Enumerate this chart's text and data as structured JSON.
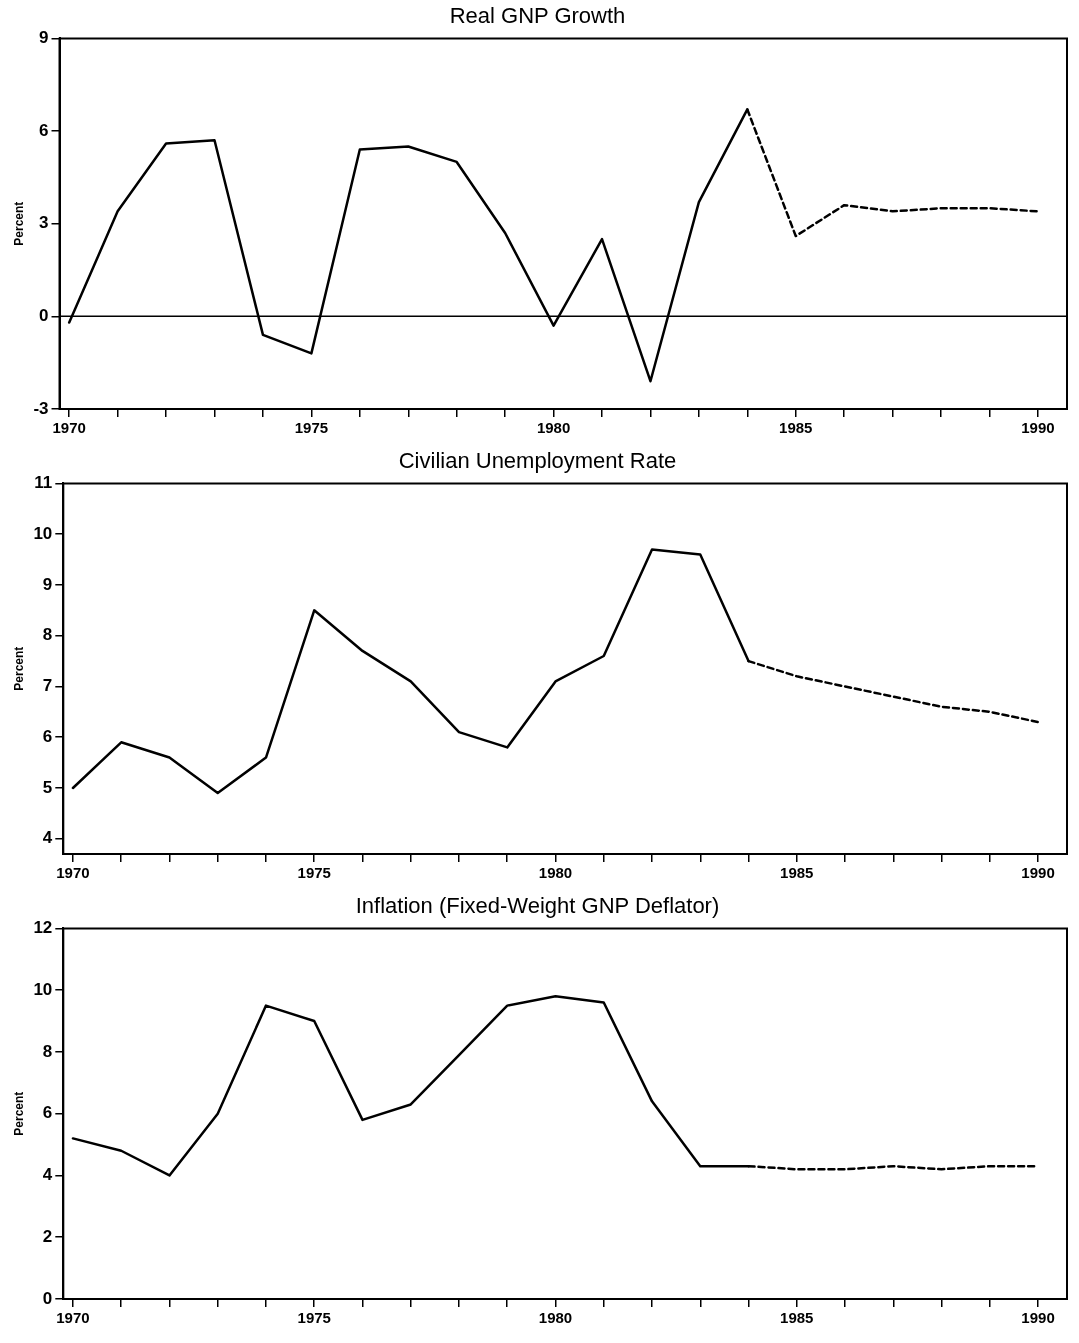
{
  "chart_data": [
    {
      "type": "line",
      "title": "Real GNP Growth",
      "ylabel": "Percent",
      "marker": "none",
      "xlim": [
        1969.8,
        1990.6
      ],
      "xticks": [
        1970,
        {
          "value": 1971,
          "label": null
        },
        {
          "value": 1972,
          "label": null
        },
        {
          "value": 1973,
          "label": null
        },
        {
          "value": 1974,
          "label": null
        },
        1975,
        {
          "value": 1976,
          "label": null
        },
        {
          "value": 1977,
          "label": null
        },
        {
          "value": 1978,
          "label": null
        },
        {
          "value": 1979,
          "label": null
        },
        1980,
        {
          "value": 1981,
          "label": null
        },
        {
          "value": 1982,
          "label": null
        },
        {
          "value": 1983,
          "label": null
        },
        {
          "value": 1984,
          "label": null
        },
        1985,
        {
          "value": 1986,
          "label": null
        },
        {
          "value": 1987,
          "label": null
        },
        {
          "value": 1988,
          "label": null
        },
        {
          "value": 1989,
          "label": null
        },
        1990
      ],
      "ylim": [
        -3,
        9
      ],
      "yticks": [
        -3,
        0,
        3,
        6,
        9
      ],
      "ref_lines": [
        {
          "axis": "y",
          "value": 0,
          "color": "#000000",
          "line_style": "solid"
        }
      ],
      "series": [
        {
          "color": "#000000",
          "line_style": "solid",
          "x": [
            1970,
            1971,
            1972,
            1973,
            1974,
            1975,
            1976,
            1977,
            1978,
            1979,
            1980,
            1981,
            1982,
            1983,
            1984
          ],
          "values": [
            -0.2,
            3.4,
            5.6,
            5.7,
            -0.6,
            -1.2,
            5.4,
            5.5,
            5.0,
            2.7,
            -0.3,
            2.5,
            -2.1,
            3.7,
            6.7
          ]
        },
        {
          "color": "#000000",
          "line_style": "dashed",
          "x": [
            1984,
            1985,
            1986,
            1987,
            1988,
            1989,
            1990
          ],
          "values": [
            6.7,
            2.6,
            3.6,
            3.4,
            3.5,
            3.5,
            3.4
          ]
        }
      ]
    },
    {
      "type": "line",
      "title": "Civilian Unemployment Rate",
      "ylabel": "Percent",
      "marker": "none",
      "xlim": [
        1969.8,
        1990.6
      ],
      "xticks": [
        1970,
        {
          "value": 1971,
          "label": null
        },
        {
          "value": 1972,
          "label": null
        },
        {
          "value": 1973,
          "label": null
        },
        {
          "value": 1974,
          "label": null
        },
        1975,
        {
          "value": 1976,
          "label": null
        },
        {
          "value": 1977,
          "label": null
        },
        {
          "value": 1978,
          "label": null
        },
        {
          "value": 1979,
          "label": null
        },
        1980,
        {
          "value": 1981,
          "label": null
        },
        {
          "value": 1982,
          "label": null
        },
        {
          "value": 1983,
          "label": null
        },
        {
          "value": 1984,
          "label": null
        },
        1985,
        {
          "value": 1986,
          "label": null
        },
        {
          "value": 1987,
          "label": null
        },
        {
          "value": 1988,
          "label": null
        },
        {
          "value": 1989,
          "label": null
        },
        1990
      ],
      "ylim": [
        3.7,
        11
      ],
      "yticks": [
        4,
        5,
        6,
        7,
        8,
        9,
        10,
        11
      ],
      "series": [
        {
          "color": "#000000",
          "line_style": "solid",
          "x": [
            1970,
            1971,
            1972,
            1973,
            1974,
            1975,
            1976,
            1977,
            1978,
            1979,
            1980,
            1981,
            1982,
            1983,
            1984
          ],
          "values": [
            5.0,
            5.9,
            5.6,
            4.9,
            5.6,
            8.5,
            7.7,
            7.1,
            6.1,
            5.8,
            7.1,
            7.6,
            9.7,
            9.6,
            7.5
          ]
        },
        {
          "color": "#000000",
          "line_style": "dashed",
          "x": [
            1984,
            1985,
            1986,
            1987,
            1988,
            1989,
            1990
          ],
          "values": [
            7.5,
            7.2,
            7.0,
            6.8,
            6.6,
            6.5,
            6.3
          ]
        }
      ]
    },
    {
      "type": "line",
      "title": "Inflation (Fixed-Weight GNP Deflator)",
      "ylabel": "Percent",
      "marker": "none",
      "xlim": [
        1969.8,
        1990.6
      ],
      "xticks": [
        1970,
        {
          "value": 1971,
          "label": null
        },
        {
          "value": 1972,
          "label": null
        },
        {
          "value": 1973,
          "label": null
        },
        {
          "value": 1974,
          "label": null
        },
        1975,
        {
          "value": 1976,
          "label": null
        },
        {
          "value": 1977,
          "label": null
        },
        {
          "value": 1978,
          "label": null
        },
        {
          "value": 1979,
          "label": null
        },
        1980,
        {
          "value": 1981,
          "label": null
        },
        {
          "value": 1982,
          "label": null
        },
        {
          "value": 1983,
          "label": null
        },
        {
          "value": 1984,
          "label": null
        },
        1985,
        {
          "value": 1986,
          "label": null
        },
        {
          "value": 1987,
          "label": null
        },
        {
          "value": 1988,
          "label": null
        },
        {
          "value": 1989,
          "label": null
        },
        1990
      ],
      "ylim": [
        0,
        12
      ],
      "yticks": [
        0,
        2,
        4,
        6,
        8,
        10,
        12
      ],
      "series": [
        {
          "color": "#000000",
          "line_style": "solid",
          "x": [
            1970,
            1971,
            1972,
            1973,
            1974,
            1975,
            1976,
            1977,
            1978,
            1979,
            1980,
            1981,
            1982,
            1983,
            1984
          ],
          "values": [
            5.2,
            4.8,
            4.0,
            6.0,
            9.5,
            9.0,
            5.8,
            6.3,
            7.9,
            9.5,
            9.8,
            9.6,
            6.4,
            4.3,
            4.3
          ]
        },
        {
          "color": "#000000",
          "line_style": "dashed",
          "x": [
            1984,
            1985,
            1986,
            1987,
            1988,
            1989,
            1990
          ],
          "values": [
            4.3,
            4.2,
            4.2,
            4.3,
            4.2,
            4.3,
            4.3
          ]
        }
      ]
    }
  ]
}
